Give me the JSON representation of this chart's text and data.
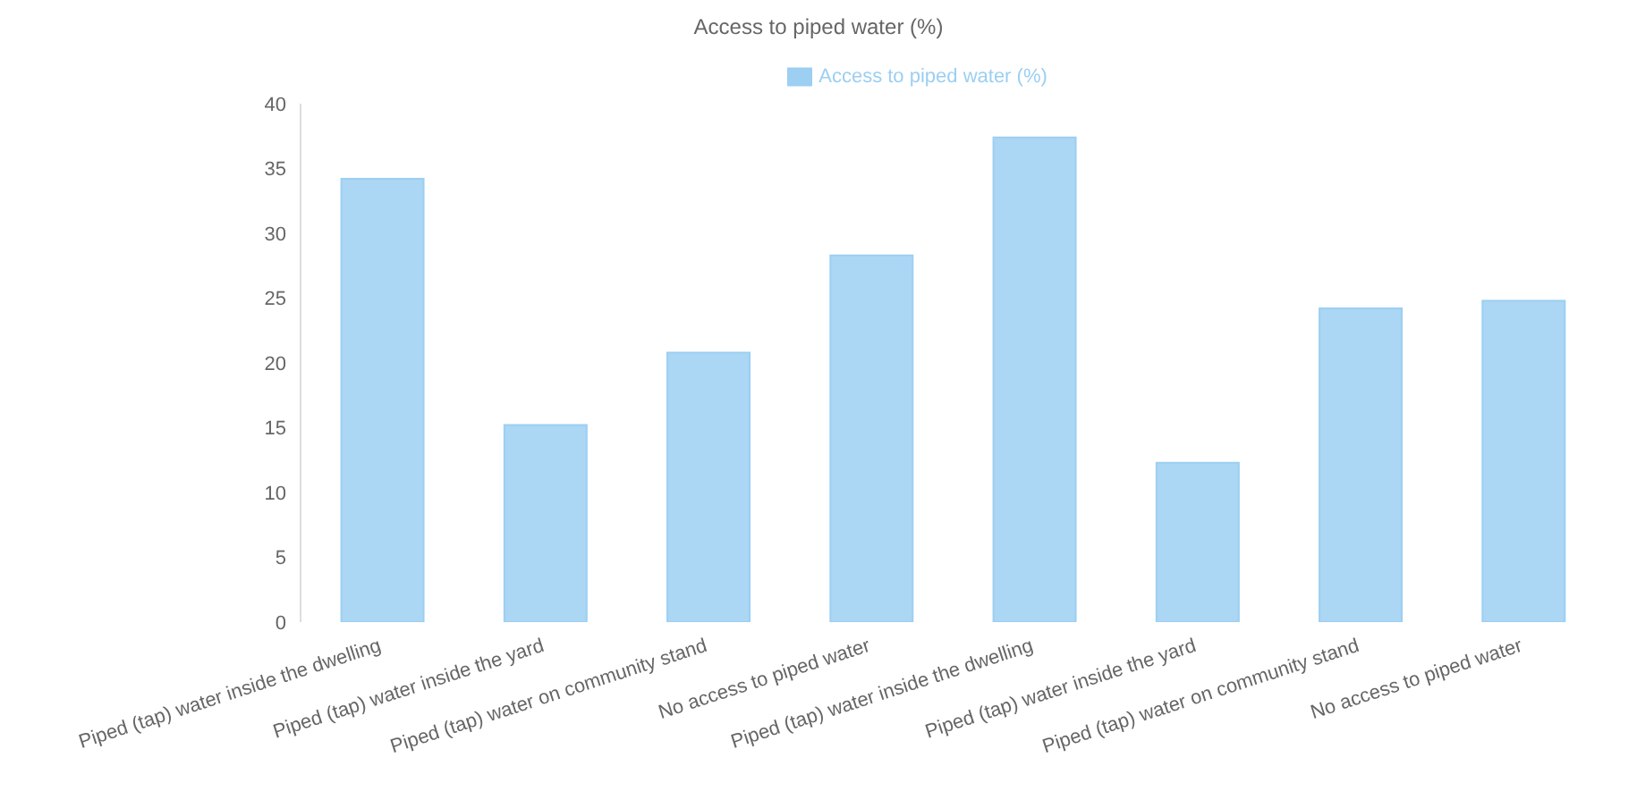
{
  "chart_data": {
    "type": "bar",
    "title": "Access to piped water (%)",
    "categories": [
      "Piped (tap) water inside the dwelling",
      "Piped (tap) water inside the yard",
      "Piped (tap) water on community stand",
      "No access to piped water",
      "Piped (tap) water inside the dwelling",
      "Piped (tap) water inside the yard",
      "Piped (tap) water on community stand",
      "No access to piped water"
    ],
    "series": [
      {
        "name": "Access to piped water (%)",
        "color": "#9ccff2",
        "values": [
          34.2,
          15.2,
          20.8,
          28.3,
          37.4,
          12.3,
          24.2,
          24.8
        ]
      }
    ],
    "ylim": [
      0,
      40
    ],
    "yticks": [
      0,
      5,
      10,
      15,
      20,
      25,
      30,
      35,
      40
    ],
    "grid": false,
    "legend": "top"
  }
}
